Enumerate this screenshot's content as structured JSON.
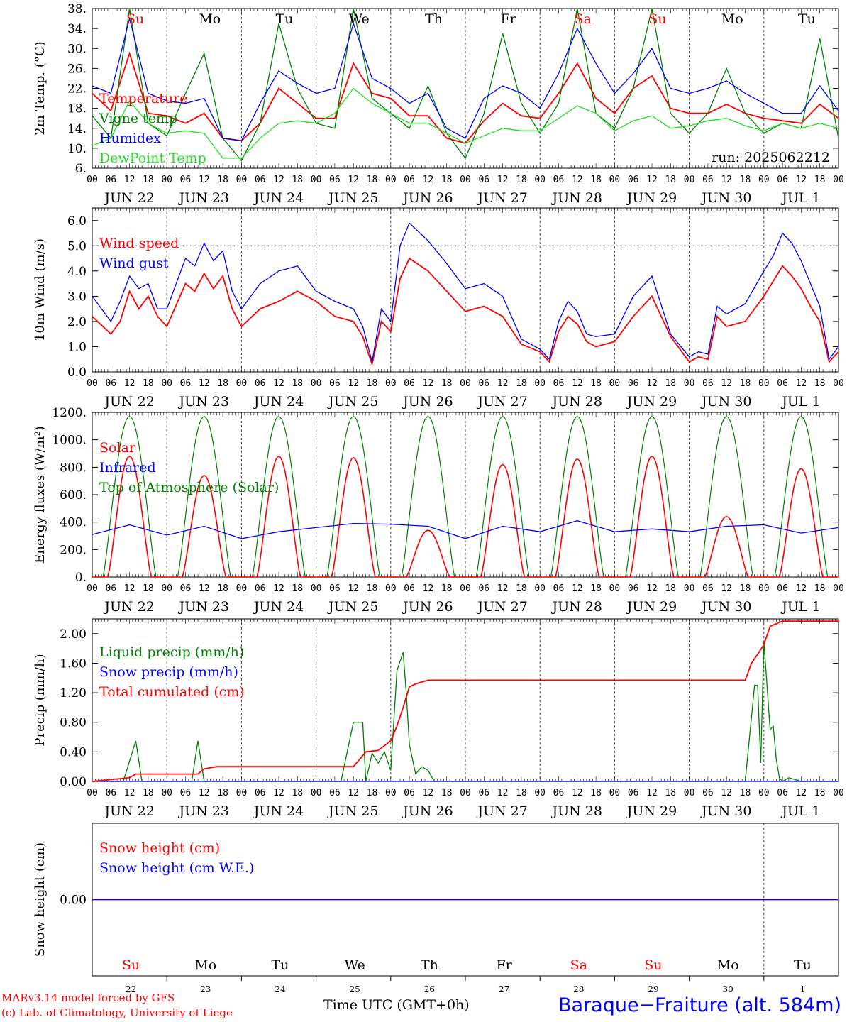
{
  "colors": {
    "red": "#ff0000",
    "green": "#008000",
    "blue": "#0000ff",
    "lightgreen": "#22dd22",
    "black": "#000000",
    "gray": "#555555"
  },
  "time_axis": {
    "hour_ticks": [
      "00",
      "06",
      "12",
      "18"
    ],
    "dates": [
      "JUN 22",
      "JUN 23",
      "JUN 24",
      "JUN 25",
      "JUN 26",
      "JUN 27",
      "JUN 28",
      "JUN 29",
      "JUN 30",
      "JUL  1"
    ],
    "weekdays": [
      "Su",
      "Mo",
      "Tu",
      "We",
      "Th",
      "Fr",
      "Sa",
      "Su",
      "Mo",
      "Tu"
    ],
    "weekday_colors": [
      "red",
      "black",
      "black",
      "black",
      "black",
      "black",
      "red",
      "red",
      "black",
      "black"
    ],
    "day_numbers": [
      "22",
      "23",
      "24",
      "25",
      "26",
      "27",
      "28",
      "29",
      "30",
      "1"
    ],
    "xlabel": "Time UTC (GMT+0h)"
  },
  "footer": {
    "model": "MARv3.14 model forced by GFS",
    "copyright": "(c) Lab. of Climatology, University of Liege",
    "station": "Baraque−Fraiture (alt. 584m)"
  },
  "chart_data": [
    {
      "type": "line",
      "ylabel": "2m Temp. (°C)",
      "ylim": [
        6,
        38
      ],
      "yticks": [
        "6.",
        "10.",
        "14.",
        "18.",
        "22.",
        "26.",
        "30.",
        "34.",
        "38."
      ],
      "annotation": "run: 2025062212",
      "legend": [
        "Temperature",
        "Vigne temp",
        "Humidex",
        "DewPoint Temp"
      ],
      "x_unit": "hours since JUN 22 00 UTC",
      "series": [
        {
          "name": "Temperature",
          "color": "red",
          "x": [
            0,
            6,
            12,
            18,
            24,
            30,
            36,
            42,
            48,
            54,
            60,
            66,
            72,
            78,
            84,
            90,
            96,
            102,
            108,
            114,
            120,
            126,
            132,
            138,
            144,
            150,
            156,
            162,
            168,
            174,
            180,
            186,
            192,
            198,
            204,
            210,
            216,
            222,
            228,
            234,
            240
          ],
          "values": [
            21,
            17.5,
            29,
            17,
            16.5,
            15,
            17,
            12,
            11.5,
            15,
            22,
            19,
            16,
            16,
            27,
            21,
            20,
            16.5,
            16.5,
            12,
            11,
            15.5,
            19,
            16.5,
            16,
            21,
            27,
            20,
            17,
            22,
            24.5,
            18,
            17,
            17,
            18.8,
            17,
            16,
            15.5,
            15,
            18.8,
            16
          ]
        },
        {
          "name": "Vigne temp",
          "color": "green",
          "x": [
            0,
            6,
            12,
            18,
            24,
            30,
            36,
            42,
            48,
            54,
            60,
            66,
            72,
            78,
            84,
            90,
            96,
            102,
            108,
            114,
            120,
            126,
            132,
            138,
            144,
            150,
            156,
            162,
            168,
            174,
            180,
            186,
            192,
            198,
            204,
            210,
            216,
            222,
            228,
            234,
            240
          ],
          "values": [
            16.5,
            12,
            38,
            15,
            12.5,
            21,
            29,
            12,
            7.5,
            15,
            35,
            22,
            15,
            14,
            38,
            20,
            17,
            14,
            22.5,
            13,
            8,
            17,
            33,
            19,
            13,
            19,
            38,
            17,
            14,
            22,
            38,
            17,
            13,
            17,
            26,
            17,
            13,
            15,
            14,
            32,
            12
          ]
        },
        {
          "name": "Humidex",
          "color": "blue",
          "x": [
            0,
            6,
            12,
            18,
            24,
            30,
            36,
            42,
            48,
            54,
            60,
            66,
            72,
            78,
            84,
            90,
            96,
            102,
            108,
            114,
            120,
            126,
            132,
            138,
            144,
            150,
            156,
            162,
            168,
            174,
            180,
            186,
            192,
            198,
            204,
            210,
            216,
            222,
            228,
            234,
            240
          ],
          "values": [
            22.5,
            21,
            36,
            21,
            19.5,
            19,
            20,
            12,
            11.5,
            19,
            25.5,
            23,
            21,
            22,
            35,
            24,
            22,
            19,
            21,
            14,
            12,
            20,
            22.5,
            21,
            18,
            25,
            34,
            27,
            21,
            25,
            30,
            22,
            21,
            22,
            23.5,
            21,
            19,
            17,
            17,
            22.5,
            17.5
          ]
        },
        {
          "name": "DewPoint Temp",
          "color": "lightgreen",
          "x": [
            0,
            6,
            12,
            18,
            24,
            30,
            36,
            42,
            48,
            54,
            60,
            66,
            72,
            78,
            84,
            90,
            96,
            102,
            108,
            114,
            120,
            126,
            132,
            138,
            144,
            150,
            156,
            162,
            168,
            174,
            180,
            186,
            192,
            198,
            204,
            210,
            216,
            222,
            228,
            234,
            240
          ],
          "values": [
            10.5,
            12,
            19.5,
            15,
            13,
            13.5,
            13,
            8,
            8,
            12,
            15,
            15.5,
            15,
            17,
            22,
            19,
            17,
            15,
            15,
            13,
            11,
            12.5,
            14,
            13.5,
            13.5,
            16,
            18.5,
            17,
            13.5,
            15.5,
            16.5,
            14,
            14.5,
            15.5,
            16,
            14.5,
            13.5,
            15,
            14,
            15,
            14
          ]
        }
      ]
    },
    {
      "type": "line",
      "ylabel": "10m Wind (m/s)",
      "ylim": [
        0,
        6.5
      ],
      "yticks": [
        "0.0",
        "1.0",
        "2.0",
        "3.0",
        "4.0",
        "5.0",
        "6.0"
      ],
      "reference_line": 5.0,
      "legend": [
        "Wind speed",
        "Wind gust"
      ],
      "series": [
        {
          "name": "Wind speed",
          "color": "red",
          "x": [
            0,
            6,
            9,
            12,
            15,
            18,
            21,
            24,
            30,
            33,
            36,
            39,
            42,
            45,
            48,
            54,
            60,
            66,
            72,
            78,
            84,
            87,
            90,
            93,
            96,
            99,
            102,
            108,
            114,
            120,
            126,
            132,
            138,
            144,
            147,
            150,
            153,
            156,
            159,
            162,
            168,
            174,
            180,
            186,
            192,
            195,
            198,
            201,
            204,
            210,
            216,
            219,
            222,
            225,
            228,
            231,
            234,
            237,
            240
          ],
          "values": [
            2.2,
            1.5,
            2.0,
            3.2,
            2.5,
            3.0,
            2.2,
            1.8,
            3.5,
            3.2,
            3.9,
            3.3,
            3.8,
            2.5,
            1.8,
            2.5,
            2.8,
            3.2,
            2.8,
            2.2,
            2.0,
            1.4,
            0.3,
            2.0,
            1.6,
            3.7,
            4.5,
            4.0,
            3.2,
            2.4,
            2.6,
            2.2,
            1.1,
            0.8,
            0.4,
            1.6,
            2.2,
            1.9,
            1.2,
            1.0,
            1.2,
            2.2,
            3.0,
            1.4,
            0.4,
            0.6,
            0.5,
            2.2,
            1.8,
            2.0,
            3.0,
            3.6,
            4.2,
            3.8,
            3.3,
            2.6,
            2.0,
            0.4,
            0.8
          ]
        },
        {
          "name": "Wind gust",
          "color": "blue",
          "x": [
            0,
            6,
            9,
            12,
            15,
            18,
            21,
            24,
            30,
            33,
            36,
            39,
            42,
            45,
            48,
            54,
            60,
            66,
            72,
            78,
            84,
            87,
            90,
            93,
            96,
            99,
            102,
            108,
            114,
            120,
            126,
            132,
            138,
            144,
            147,
            150,
            153,
            156,
            159,
            162,
            168,
            174,
            180,
            186,
            192,
            195,
            198,
            201,
            204,
            210,
            216,
            219,
            222,
            225,
            228,
            231,
            234,
            237,
            240
          ],
          "values": [
            3.0,
            2.0,
            2.8,
            3.8,
            3.3,
            3.5,
            2.5,
            2.5,
            4.5,
            4.2,
            5.1,
            4.4,
            4.8,
            3.2,
            2.5,
            3.5,
            4.0,
            4.2,
            3.2,
            2.8,
            2.5,
            1.8,
            0.4,
            2.5,
            2.0,
            5.0,
            5.9,
            5.2,
            4.3,
            3.3,
            3.5,
            3.0,
            1.3,
            0.9,
            0.5,
            2.0,
            2.8,
            2.4,
            1.5,
            1.4,
            1.5,
            3.0,
            3.8,
            1.5,
            0.6,
            0.8,
            0.7,
            2.6,
            2.3,
            2.7,
            4.0,
            4.6,
            5.5,
            5.1,
            4.4,
            3.5,
            2.6,
            0.5,
            1.0
          ]
        }
      ]
    },
    {
      "type": "line",
      "ylabel": "Energy fluxes (W/m²)",
      "ylim": [
        0,
        1200
      ],
      "yticks": [
        "0.",
        "200.",
        "400.",
        "600.",
        "800.",
        "1000.",
        "1200."
      ],
      "legend": [
        "Solar",
        "Infrared",
        "Top of Atmosphere (Solar)"
      ],
      "solar_daily_peaks": [
        880,
        740,
        880,
        870,
        340,
        820,
        860,
        880,
        440,
        790
      ],
      "toa_daily_peak": 1170,
      "series": [
        {
          "name": "Infrared",
          "color": "blue",
          "x": [
            0,
            12,
            24,
            36,
            48,
            60,
            72,
            84,
            96,
            108,
            120,
            132,
            144,
            156,
            168,
            180,
            192,
            204,
            216,
            228,
            240
          ],
          "values": [
            310,
            380,
            305,
            370,
            280,
            330,
            360,
            390,
            385,
            370,
            280,
            370,
            330,
            410,
            330,
            350,
            330,
            370,
            380,
            320,
            360
          ]
        }
      ]
    },
    {
      "type": "line",
      "ylabel": "Precip (mm/h)",
      "ylim": [
        0,
        2.2
      ],
      "yticks": [
        "0.00",
        "0.40",
        "0.80",
        "1.20",
        "1.60",
        "2.00"
      ],
      "legend": [
        "Liquid precip (mm/h)",
        "Snow precip (mm/h)",
        "Total cumulated (cm)"
      ],
      "series": [
        {
          "name": "Liquid precip (mm/h)",
          "color": "green",
          "x": [
            0,
            10,
            14,
            16,
            20,
            32,
            34,
            36,
            40,
            80,
            84,
            87,
            88,
            90,
            92,
            94,
            96,
            98,
            100,
            101,
            102,
            104,
            106,
            108,
            110,
            114,
            210,
            213,
            214,
            215,
            216,
            218,
            219,
            220,
            221,
            222,
            224,
            228,
            240
          ],
          "values": [
            0,
            0,
            0.55,
            0,
            0,
            0,
            0.55,
            0,
            0,
            0,
            0.8,
            0.8,
            0,
            0.38,
            0.25,
            0.4,
            0.15,
            1.5,
            1.75,
            1.2,
            0.5,
            0.1,
            0.2,
            0.15,
            0,
            0,
            0,
            1.3,
            1.3,
            0.25,
            1.9,
            0.7,
            0.75,
            0.3,
            0.05,
            0,
            0.05,
            0,
            0
          ]
        },
        {
          "name": "Snow precip (mm/h)",
          "color": "blue",
          "x": [
            0,
            240
          ],
          "values": [
            0,
            0
          ]
        },
        {
          "name": "Total cumulated (cm)",
          "color": "red",
          "x": [
            0,
            12,
            14,
            34,
            36,
            40,
            84,
            88,
            92,
            96,
            98,
            100,
            102,
            104,
            108,
            210,
            212,
            214,
            216,
            218,
            222,
            240
          ],
          "values": [
            0,
            0.05,
            0.1,
            0.1,
            0.17,
            0.2,
            0.2,
            0.4,
            0.42,
            0.55,
            0.75,
            1.0,
            1.28,
            1.32,
            1.37,
            1.37,
            1.6,
            1.72,
            1.85,
            2.1,
            2.17,
            2.17
          ]
        }
      ]
    },
    {
      "type": "line",
      "ylabel": "Snow height (cm)",
      "ylim": [
        -1,
        1
      ],
      "yticks": [
        "0.00"
      ],
      "legend": [
        "Snow height (cm)",
        "Snow height (cm W.E.)"
      ],
      "series": [
        {
          "name": "Snow height (cm)",
          "color": "red",
          "x": [
            0,
            240
          ],
          "values": [
            0,
            0
          ]
        },
        {
          "name": "Snow height (cm W.E.)",
          "color": "blue",
          "x": [
            0,
            240
          ],
          "values": [
            0,
            0
          ]
        }
      ]
    }
  ]
}
